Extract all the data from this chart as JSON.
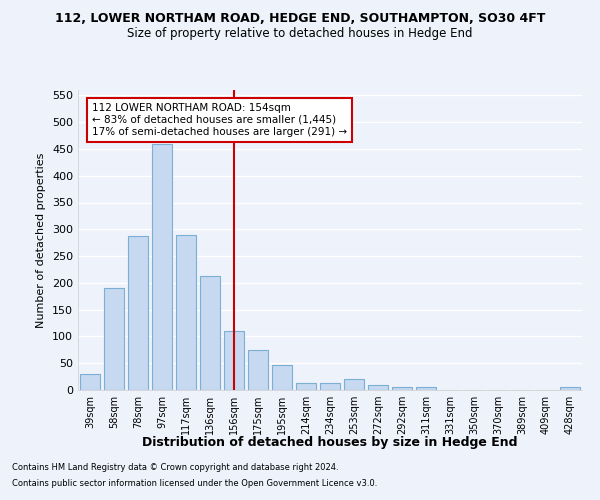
{
  "title_line1": "112, LOWER NORTHAM ROAD, HEDGE END, SOUTHAMPTON, SO30 4FT",
  "title_line2": "Size of property relative to detached houses in Hedge End",
  "xlabel": "Distribution of detached houses by size in Hedge End",
  "ylabel": "Number of detached properties",
  "categories": [
    "39sqm",
    "58sqm",
    "78sqm",
    "97sqm",
    "117sqm",
    "136sqm",
    "156sqm",
    "175sqm",
    "195sqm",
    "214sqm",
    "234sqm",
    "253sqm",
    "272sqm",
    "292sqm",
    "311sqm",
    "331sqm",
    "350sqm",
    "370sqm",
    "389sqm",
    "409sqm",
    "428sqm"
  ],
  "values": [
    30,
    190,
    287,
    460,
    290,
    213,
    110,
    75,
    47,
    13,
    13,
    21,
    10,
    5,
    6,
    0,
    0,
    0,
    0,
    0,
    5
  ],
  "bar_color": "#c6d9f0",
  "bar_edge_color": "#7bafd4",
  "vline_x_index": 6,
  "vline_color": "#cc0000",
  "annotation_text": "112 LOWER NORTHAM ROAD: 154sqm\n← 83% of detached houses are smaller (1,445)\n17% of semi-detached houses are larger (291) →",
  "annotation_box_color": "#ffffff",
  "annotation_box_edge_color": "#cc0000",
  "ylim": [
    0,
    560
  ],
  "yticks": [
    0,
    50,
    100,
    150,
    200,
    250,
    300,
    350,
    400,
    450,
    500,
    550
  ],
  "background_color": "#eef2fb",
  "grid_color": "#ffffff",
  "footnote1": "Contains HM Land Registry data © Crown copyright and database right 2024.",
  "footnote2": "Contains public sector information licensed under the Open Government Licence v3.0."
}
